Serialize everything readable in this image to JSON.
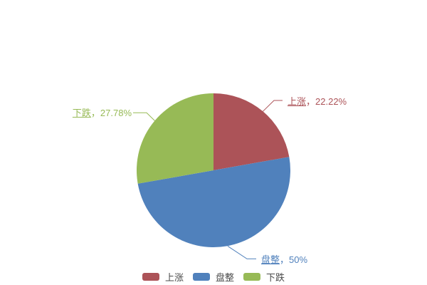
{
  "chart_data": {
    "type": "pie",
    "title": "",
    "categories": [
      "上涨",
      "盘整",
      "下跌"
    ],
    "values": [
      22.22,
      50,
      27.78
    ],
    "unit": "%",
    "start_angle": "12-oclock",
    "direction": "clockwise",
    "legend_position": "bottom",
    "background_color": "#ffffff",
    "series": [
      {
        "name": "上涨",
        "value": 22.22,
        "label": "上涨，22.22%",
        "label_suffix": "，22.22%",
        "color": "#AC5358",
        "underline": true
      },
      {
        "name": "盘整",
        "value": 50,
        "label": "盘整，50%",
        "label_suffix": "，50%",
        "color": "#5081BC",
        "underline": true
      },
      {
        "name": "下跌",
        "value": 27.78,
        "label": "下跌，27.78%",
        "label_suffix": "，27.78%",
        "color": "#97BA56",
        "underline": true
      }
    ],
    "legend_text_color": "#4a4a4a"
  }
}
